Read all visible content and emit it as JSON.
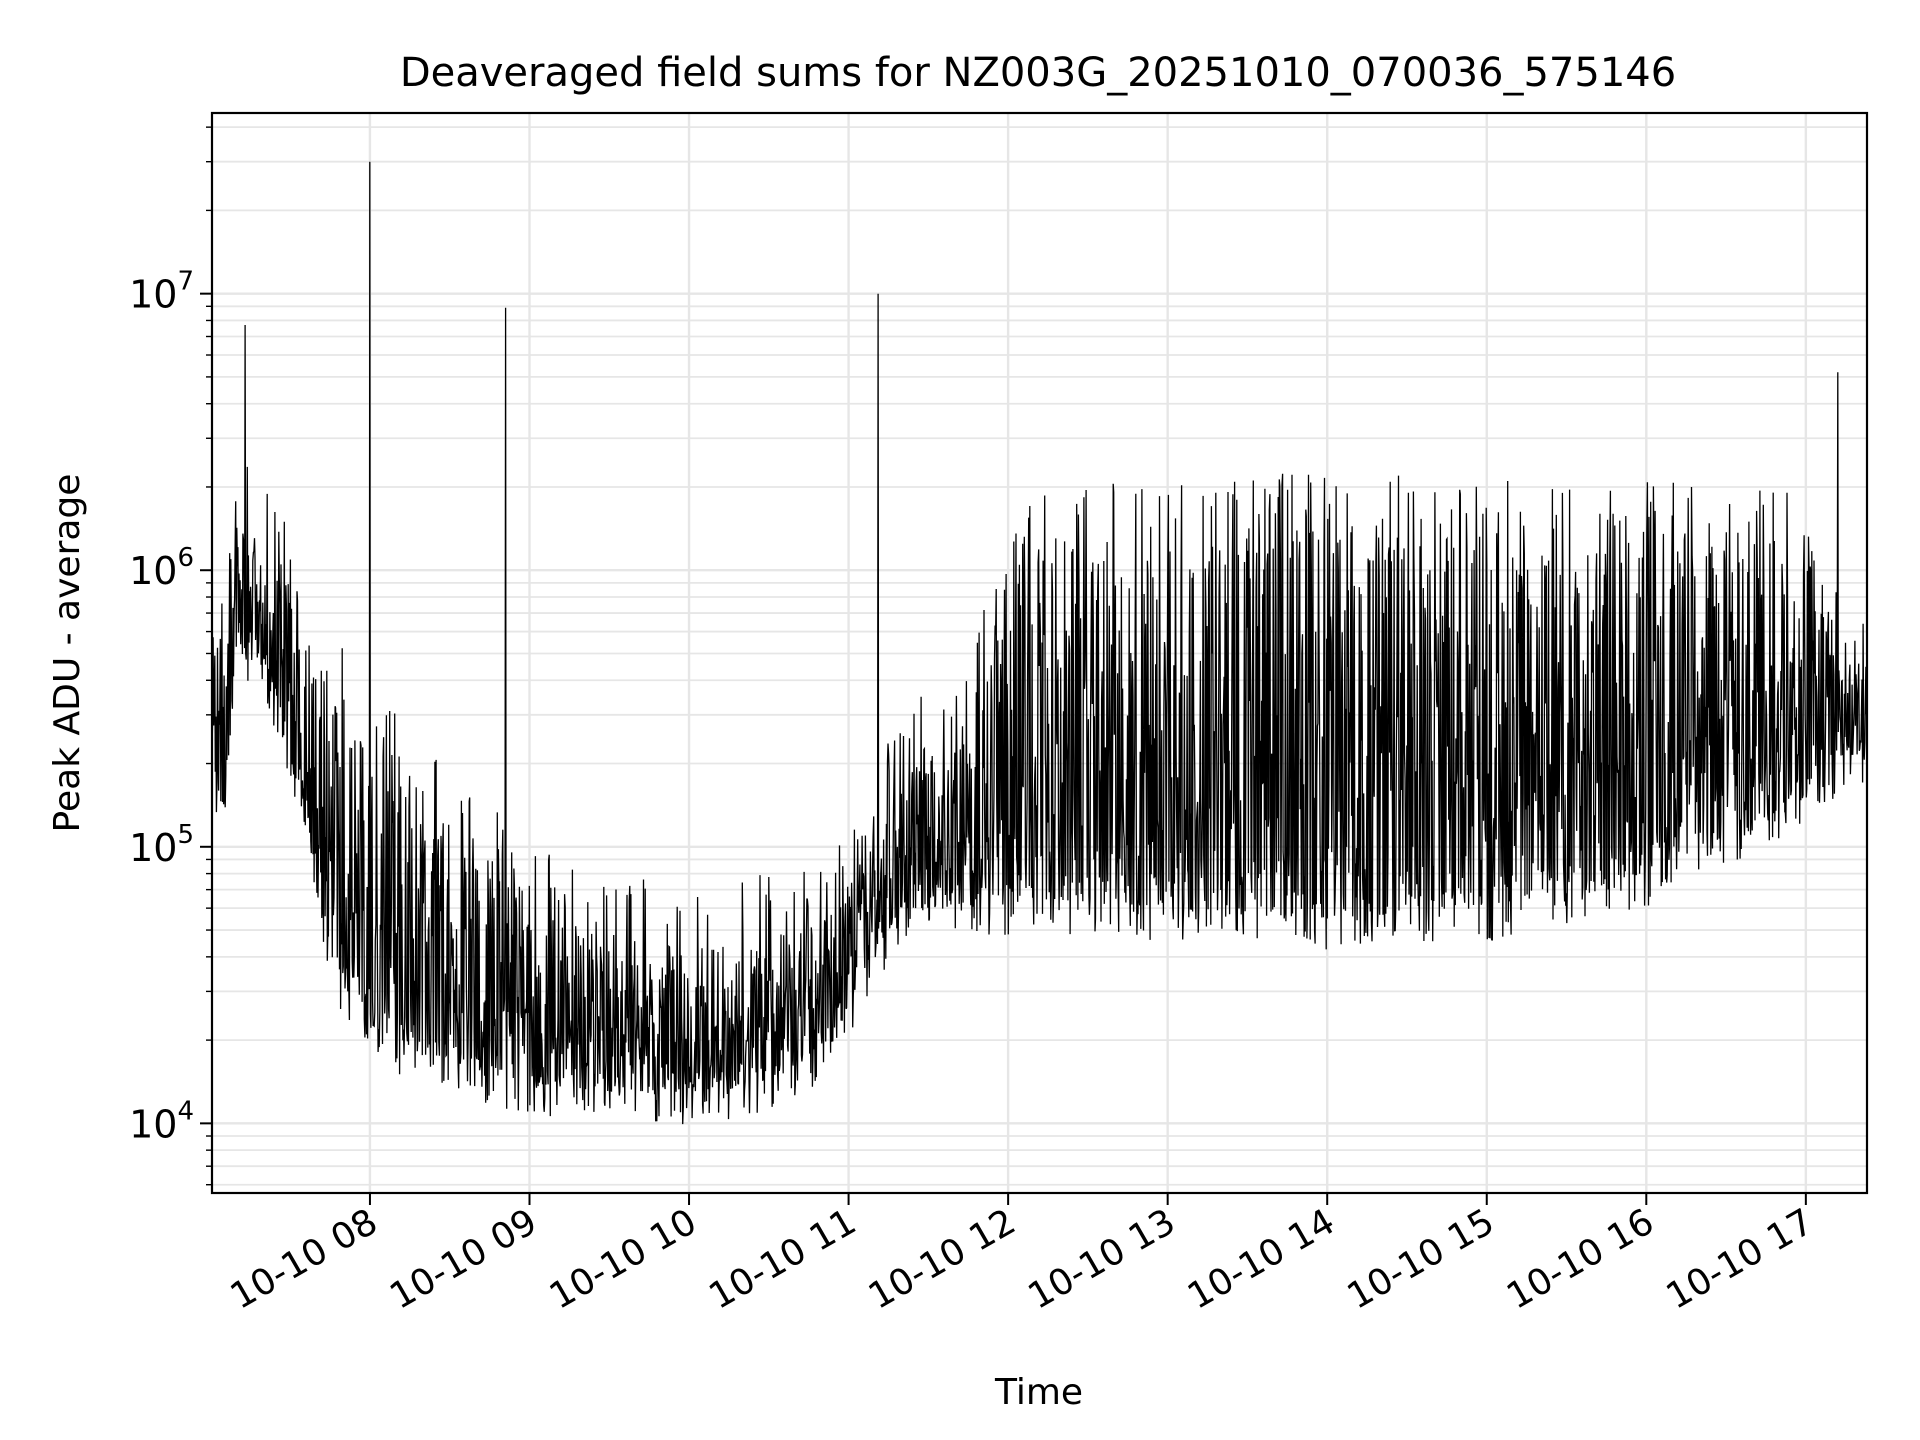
{
  "chart_data": {
    "type": "line",
    "title": "Deaveraged field sums for NZ003G_20251010_070036_575146",
    "xlabel": "Time",
    "ylabel": "Peak ADU - average",
    "x_range": [
      "2025-10-10 07:00:36",
      "2025-10-10 17:23:00"
    ],
    "y_range": [
      5600,
      45000000
    ],
    "y_scale": "log",
    "grid": true,
    "x_tick_labels": [
      "10-10 08",
      "10-10 09",
      "10-10 10",
      "10-10 11",
      "10-10 12",
      "10-10 13",
      "10-10 14",
      "10-10 15",
      "10-10 16",
      "10-10 17"
    ],
    "x_tick_hours": [
      8,
      9,
      10,
      11,
      12,
      13,
      14,
      15,
      16,
      17
    ],
    "y_major_ticks": [
      {
        "value": 10000,
        "base": "10",
        "exp": "4"
      },
      {
        "value": 100000,
        "base": "10",
        "exp": "5"
      },
      {
        "value": 1000000,
        "base": "10",
        "exp": "6"
      },
      {
        "value": 10000000,
        "base": "10",
        "exp": "7"
      }
    ],
    "series": [
      {
        "color": "#000000",
        "envelope_points": [
          {
            "time": "07:01",
            "low": 200000,
            "high": 750000
          },
          {
            "time": "07:05",
            "low": 130000,
            "high": 400000
          },
          {
            "time": "07:10",
            "low": 500000,
            "high": 1500000
          },
          {
            "time": "07:20",
            "low": 450000,
            "high": 1200000
          },
          {
            "time": "07:30",
            "low": 200000,
            "high": 800000
          },
          {
            "time": "07:40",
            "low": 80000,
            "high": 500000
          },
          {
            "time": "07:45",
            "low": 40000,
            "high": 350000
          },
          {
            "time": "07:55",
            "low": 25000,
            "high": 250000
          },
          {
            "time": "08:15",
            "low": 18000,
            "high": 150000
          },
          {
            "time": "09:00",
            "low": 14000,
            "high": 60000
          },
          {
            "time": "09:30",
            "low": 13000,
            "high": 45000
          },
          {
            "time": "10:00",
            "low": 13000,
            "high": 45000
          },
          {
            "time": "10:30",
            "low": 14000,
            "high": 45000
          },
          {
            "time": "10:55",
            "low": 20000,
            "high": 60000
          },
          {
            "time": "11:05",
            "low": 35000,
            "high": 90000
          },
          {
            "time": "11:20",
            "low": 60000,
            "high": 180000
          },
          {
            "time": "11:40",
            "low": 60000,
            "high": 250000
          },
          {
            "time": "12:10",
            "low": 65000,
            "high": 1200000
          },
          {
            "time": "13:00",
            "low": 60000,
            "high": 1200000
          },
          {
            "time": "14:00",
            "low": 55000,
            "high": 1300000
          },
          {
            "time": "15:00",
            "low": 60000,
            "high": 1200000
          },
          {
            "time": "16:00",
            "low": 80000,
            "high": 1200000
          },
          {
            "time": "17:00",
            "low": 150000,
            "high": 1100000
          },
          {
            "time": "17:15",
            "low": 220000,
            "high": 450000
          },
          {
            "time": "17:23",
            "low": 200000,
            "high": 500000
          }
        ],
        "spikes": [
          {
            "time": "07:13",
            "value": 7700000
          },
          {
            "time": "08:00",
            "value": 30000000
          },
          {
            "time": "08:51",
            "value": 8900000
          },
          {
            "time": "11:11",
            "value": 10000000
          },
          {
            "time": "17:12",
            "value": 5200000
          },
          {
            "time": "16:17",
            "value": 2000000
          },
          {
            "time": "07:13",
            "value": 2000000
          }
        ]
      }
    ]
  }
}
